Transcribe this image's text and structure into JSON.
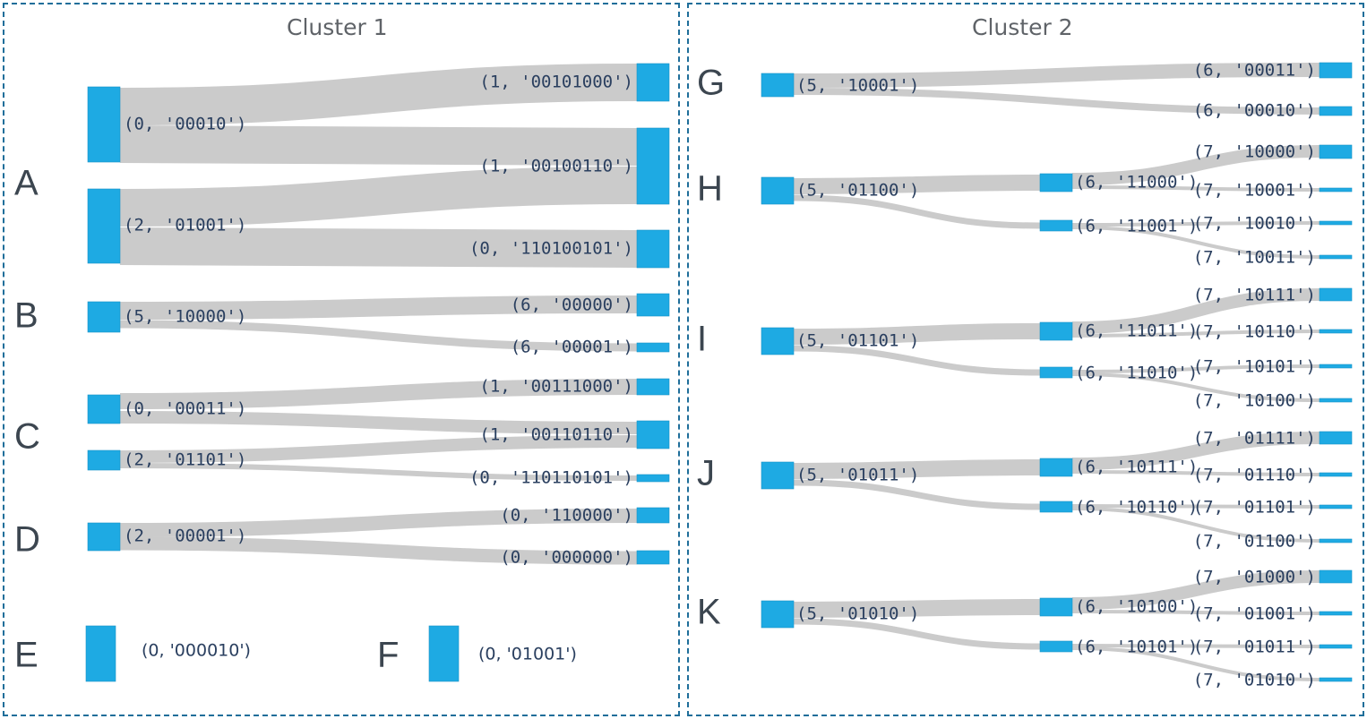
{
  "clusters": [
    {
      "title": "Cluster 1"
    },
    {
      "title": "Cluster 2"
    }
  ],
  "groups": [
    {
      "letter": "A"
    },
    {
      "letter": "B"
    },
    {
      "letter": "C"
    },
    {
      "letter": "D"
    },
    {
      "letter": "E"
    },
    {
      "letter": "F"
    },
    {
      "letter": "G"
    },
    {
      "letter": "H"
    },
    {
      "letter": "I"
    },
    {
      "letter": "J"
    },
    {
      "letter": "K"
    }
  ],
  "colors": {
    "node": "#1eaae3",
    "link": "#cbcbcb",
    "frame": "#1f6e9a"
  },
  "nodes": {
    "a_s1": "(0, '00010')",
    "a_s2": "(2, '01001')",
    "a_t1": "(1, '00101000')",
    "a_t2": "(1, '00100110')",
    "a_t3": "(0, '110100101')",
    "b_s": "(5, '10000')",
    "b_t1": "(6, '00000')",
    "b_t2": "(6, '00001')",
    "c_s1": "(0, '00011')",
    "c_s2": "(2, '01101')",
    "c_t1": "(1, '00111000')",
    "c_t2": "(1, '00110110')",
    "c_t3": "(0, '110110101')",
    "d_s": "(2, '00001')",
    "d_t1": "(0, '110000')",
    "d_t2": "(0, '000000')",
    "e": "(0, '000010')",
    "f": "(0, '01001')",
    "g_s": "(5, '10001')",
    "g_t1": "(6, '00011')",
    "g_t2": "(6, '00010')",
    "h_s": "(5, '01100')",
    "h_m1": "(6, '11000')",
    "h_m2": "(6, '11001')",
    "h_t1": "(7, '10000')",
    "h_t2": "(7, '10001')",
    "h_t3": "(7, '10010')",
    "h_t4": "(7, '10011')",
    "i_s": "(5, '01101')",
    "i_m1": "(6, '11011')",
    "i_m2": "(6, '11010')",
    "i_t1": "(7, '10111')",
    "i_t2": "(7, '10110')",
    "i_t3": "(7, '10101')",
    "i_t4": "(7, '10100')",
    "j_s": "(5, '01011')",
    "j_m1": "(6, '10111')",
    "j_m2": "(6, '10110')",
    "j_t1": "(7, '01111')",
    "j_t2": "(7, '01110')",
    "j_t3": "(7, '01101')",
    "j_t4": "(7, '01100')",
    "k_s": "(5, '01010')",
    "k_m1": "(6, '10100')",
    "k_m2": "(6, '10101')",
    "k_t1": "(7, '01000')",
    "k_t2": "(7, '01001')",
    "k_t3": "(7, '01011')",
    "k_t4": "(7, '01010')"
  }
}
